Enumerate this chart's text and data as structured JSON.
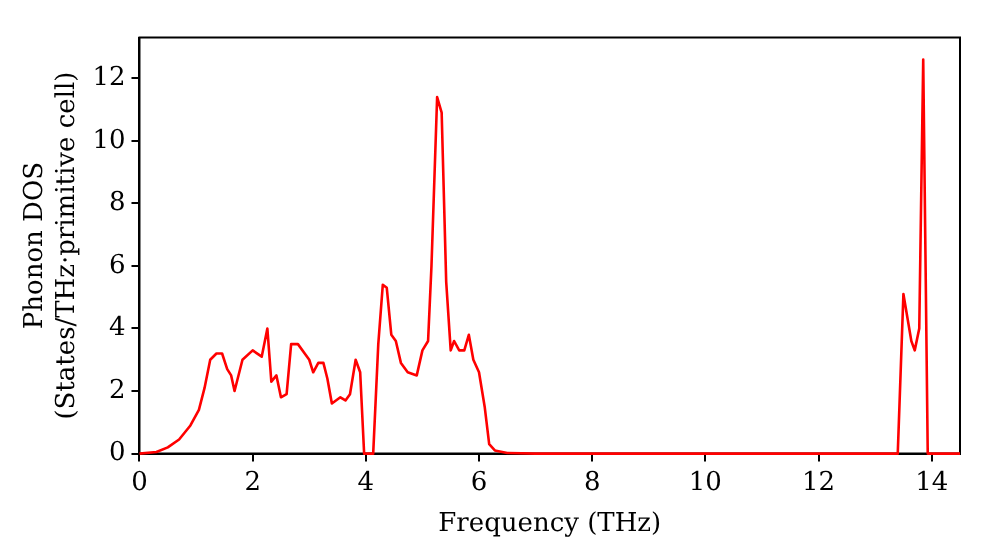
{
  "chart_data": {
    "type": "line",
    "xlabel": "Frequency (THz)",
    "ylabel": "Phonon DOS\n(States/THz·primitive cell)",
    "xlim": [
      0,
      14.5
    ],
    "ylim": [
      0,
      13.3
    ],
    "xticks": [
      0,
      2,
      4,
      6,
      8,
      10,
      12,
      14
    ],
    "yticks": [
      0,
      2,
      4,
      6,
      8,
      10,
      12
    ],
    "grid": false,
    "legend": false,
    "x": [
      0,
      0.3,
      0.5,
      0.7,
      0.9,
      1.05,
      1.15,
      1.25,
      1.36,
      1.46,
      1.55,
      1.62,
      1.68,
      1.82,
      2.0,
      2.16,
      2.26,
      2.33,
      2.42,
      2.5,
      2.6,
      2.68,
      2.8,
      2.92,
      3.0,
      3.07,
      3.16,
      3.25,
      3.32,
      3.4,
      3.55,
      3.64,
      3.72,
      3.82,
      3.9,
      3.97,
      4.13,
      4.22,
      4.3,
      4.37,
      4.45,
      4.53,
      4.62,
      4.74,
      4.9,
      5.0,
      5.1,
      5.16,
      5.26,
      5.34,
      5.42,
      5.5,
      5.56,
      5.65,
      5.74,
      5.82,
      5.9,
      6.0,
      6.1,
      6.18,
      6.28,
      6.5,
      7,
      13.4,
      13.5,
      13.64,
      13.7,
      13.78,
      13.85,
      13.93,
      14.5
    ],
    "series": [
      {
        "color": "#ff0000",
        "values": [
          0,
          0.05,
          0.2,
          0.45,
          0.9,
          1.4,
          2.1,
          3.0,
          3.2,
          3.2,
          2.7,
          2.5,
          2.0,
          3.0,
          3.3,
          3.1,
          4.0,
          2.3,
          2.5,
          1.8,
          1.9,
          3.5,
          3.5,
          3.2,
          3.0,
          2.6,
          2.9,
          2.9,
          2.4,
          1.6,
          1.8,
          1.7,
          1.9,
          3.0,
          2.6,
          0,
          0,
          3.5,
          5.4,
          5.3,
          3.8,
          3.6,
          2.9,
          2.6,
          2.5,
          3.3,
          3.6,
          6.0,
          11.4,
          10.9,
          5.5,
          3.3,
          3.6,
          3.3,
          3.3,
          3.8,
          3.0,
          2.6,
          1.5,
          0.3,
          0.1,
          0.02,
          0,
          0,
          5.1,
          3.6,
          3.3,
          4.0,
          12.6,
          0,
          0
        ]
      }
    ]
  }
}
